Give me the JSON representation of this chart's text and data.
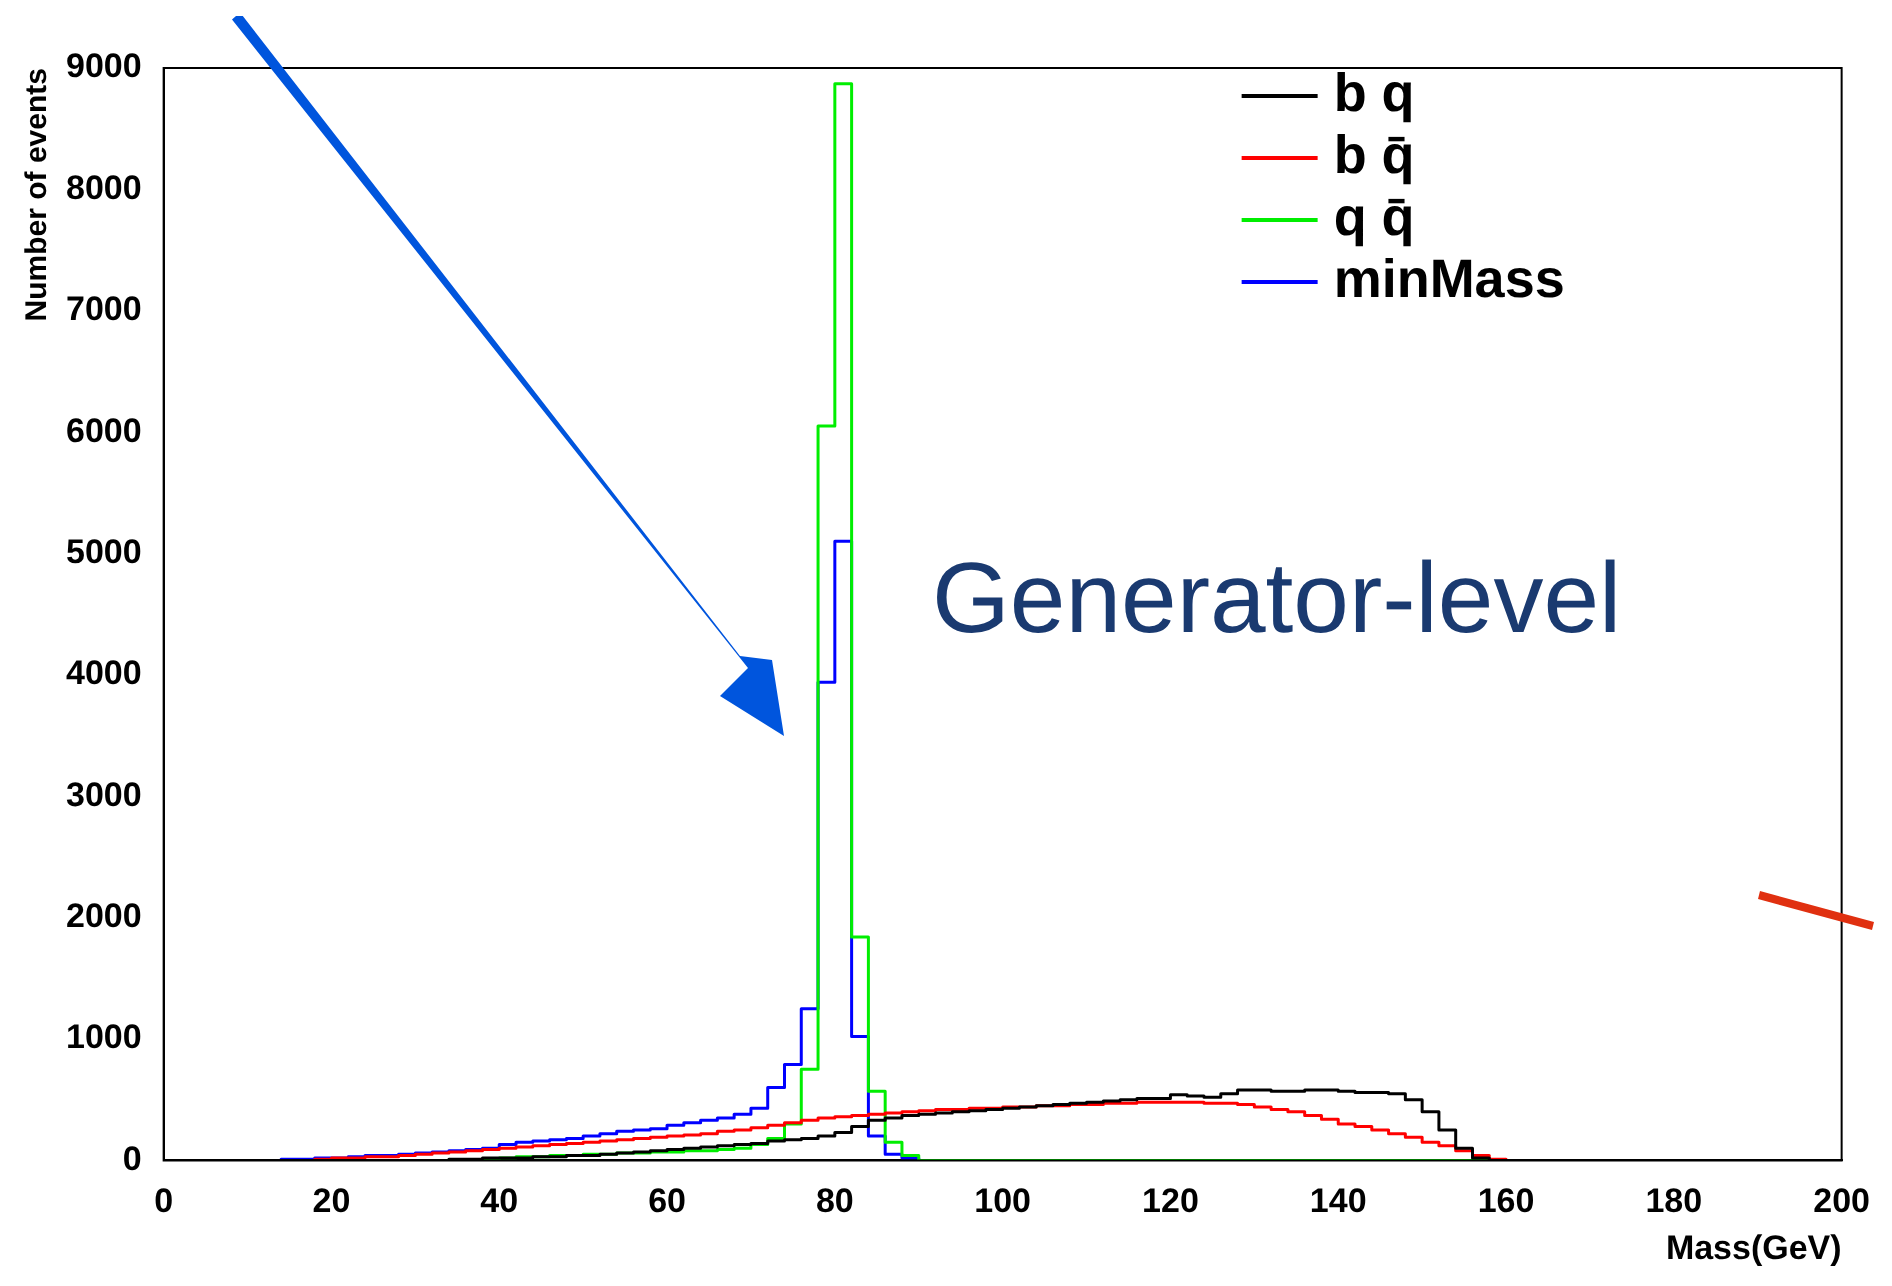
{
  "chart_data": {
    "type": "histogram",
    "xlabel": "Mass(GeV)",
    "ylabel": "Number of events",
    "annotations": [
      "Generator-level"
    ],
    "bins": [
      0,
      2,
      4,
      6,
      8,
      10,
      12,
      14,
      16,
      18,
      20,
      22,
      24,
      26,
      28,
      30,
      32,
      34,
      36,
      38,
      40,
      42,
      44,
      46,
      48,
      50,
      52,
      54,
      56,
      58,
      60,
      62,
      64,
      66,
      68,
      70,
      72,
      74,
      76,
      78,
      80,
      82,
      84,
      86,
      88,
      90,
      92,
      94,
      96,
      98,
      100,
      102,
      104,
      106,
      108,
      110,
      112,
      114,
      116,
      118,
      120,
      122,
      124,
      126,
      128,
      130,
      132,
      134,
      136,
      138,
      140,
      142,
      144,
      146,
      148,
      150,
      152,
      154,
      156,
      158,
      160,
      162,
      164,
      166,
      168,
      170,
      172,
      174,
      176,
      178,
      180,
      182,
      184,
      186,
      188,
      190,
      192,
      194,
      196,
      198,
      200
    ],
    "series": [
      {
        "name": "b q",
        "color": "#000000",
        "values": [
          0,
          0,
          0,
          0,
          0,
          0,
          0,
          0,
          0,
          0,
          0,
          0,
          0,
          0,
          0,
          0,
          0,
          10,
          10,
          20,
          20,
          20,
          30,
          30,
          40,
          40,
          50,
          60,
          70,
          80,
          90,
          100,
          110,
          120,
          130,
          140,
          160,
          170,
          180,
          200,
          230,
          280,
          330,
          350,
          370,
          380,
          390,
          400,
          410,
          420,
          430,
          440,
          450,
          460,
          470,
          480,
          490,
          500,
          510,
          510,
          540,
          530,
          520,
          550,
          580,
          580,
          570,
          570,
          580,
          580,
          570,
          560,
          560,
          550,
          500,
          400,
          250,
          100,
          20,
          0,
          0,
          0,
          0,
          0,
          0,
          0,
          0,
          0,
          0,
          0,
          0,
          0,
          0,
          0,
          0,
          0,
          0,
          0,
          0,
          0
        ]
      },
      {
        "name": "b q̄",
        "color": "#ff0000",
        "values": [
          0,
          0,
          0,
          0,
          0,
          0,
          0,
          0,
          0,
          10,
          20,
          20,
          30,
          30,
          40,
          50,
          60,
          70,
          80,
          90,
          100,
          110,
          120,
          130,
          140,
          150,
          160,
          170,
          180,
          190,
          200,
          210,
          220,
          240,
          250,
          270,
          290,
          310,
          330,
          350,
          360,
          370,
          380,
          390,
          400,
          410,
          420,
          420,
          430,
          430,
          440,
          440,
          450,
          450,
          460,
          460,
          470,
          470,
          480,
          480,
          480,
          480,
          470,
          470,
          460,
          440,
          420,
          400,
          370,
          340,
          300,
          280,
          250,
          220,
          190,
          150,
          120,
          80,
          40,
          10,
          0,
          0,
          0,
          0,
          0,
          0,
          0,
          0,
          0,
          0,
          0,
          0,
          0,
          0,
          0,
          0,
          0,
          0,
          0,
          0
        ]
      },
      {
        "name": "q q̄",
        "color": "#00ee00",
        "values": [
          0,
          0,
          0,
          0,
          0,
          0,
          0,
          0,
          0,
          0,
          0,
          0,
          0,
          0,
          0,
          0,
          0,
          0,
          0,
          0,
          20,
          30,
          30,
          40,
          40,
          50,
          50,
          60,
          60,
          70,
          70,
          80,
          80,
          90,
          100,
          130,
          180,
          300,
          750,
          6050,
          8870,
          1840,
          570,
          150,
          40,
          0,
          0,
          0,
          0,
          0,
          0,
          0,
          0,
          0,
          0,
          0,
          0,
          0,
          0,
          0,
          0,
          0,
          0,
          0,
          0,
          0,
          0,
          0,
          0,
          0,
          0,
          0,
          0,
          0,
          0,
          0,
          0,
          0,
          0,
          0,
          0,
          0,
          0,
          0,
          0,
          0,
          0,
          0,
          0,
          0,
          0,
          0,
          0,
          0,
          0,
          0,
          0,
          0,
          0,
          0
        ]
      },
      {
        "name": "minMass",
        "color": "#0000ff",
        "values": [
          0,
          0,
          0,
          0,
          0,
          0,
          0,
          10,
          10,
          20,
          20,
          30,
          40,
          40,
          50,
          60,
          70,
          80,
          90,
          100,
          130,
          150,
          160,
          170,
          180,
          200,
          220,
          240,
          250,
          260,
          290,
          310,
          330,
          350,
          380,
          430,
          600,
          790,
          1250,
          3940,
          5100,
          1020,
          200,
          50,
          20,
          0,
          0,
          0,
          0,
          0,
          0,
          0,
          0,
          0,
          0,
          0,
          0,
          0,
          0,
          0,
          0,
          0,
          0,
          0,
          0,
          0,
          0,
          0,
          0,
          0,
          0,
          0,
          0,
          0,
          0,
          0,
          0,
          0,
          0,
          0,
          0,
          0,
          0,
          0,
          0,
          0,
          0,
          0,
          0,
          0,
          0,
          0,
          0,
          0,
          0,
          0,
          0,
          0,
          0,
          0
        ]
      }
    ],
    "xlim": [
      0,
      200
    ],
    "xticks": [
      0,
      20,
      40,
      60,
      80,
      100,
      120,
      140,
      160,
      180,
      200
    ],
    "ylim": [
      0,
      9000
    ],
    "yticks": [
      0,
      1000,
      2000,
      3000,
      4000,
      5000,
      6000,
      7000,
      8000,
      9000
    ],
    "grid": false,
    "legend": "top right"
  }
}
